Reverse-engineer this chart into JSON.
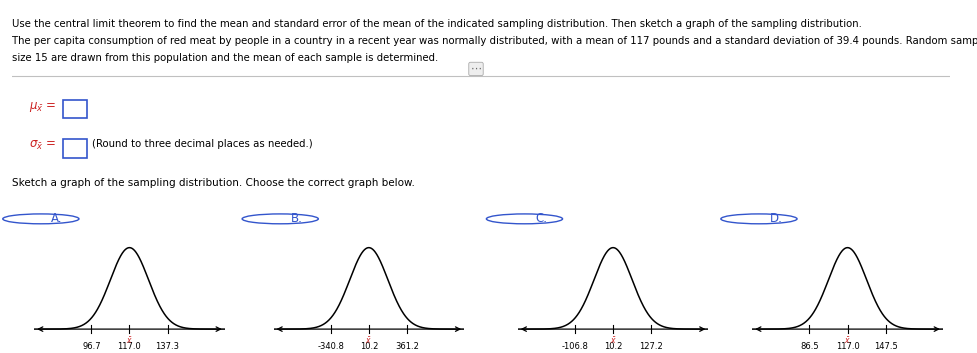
{
  "title_line1": "Use the central limit theorem to find the mean and standard error of the mean of the indicated sampling distribution. Then sketch a graph of the sampling distribution.",
  "title_line2": "The per capita consumption of red meat by people in a country in a recent year was normally distributed, with a mean of 117 pounds and a standard deviation of 39.4 pounds. Random samples of",
  "title_line3": "size 15 are drawn from this population and the mean of each sample is determined.",
  "round_note": "(Round to three decimal places as needed.)",
  "sketch_label": "Sketch a graph of the sampling distribution. Choose the correct graph below.",
  "options": [
    "A.",
    "B.",
    "C.",
    "D."
  ],
  "graphs": [
    {
      "ticks": [
        96.7,
        117.0,
        137.3
      ],
      "mean": 117.0,
      "std": 10.15
    },
    {
      "ticks": [
        -340.8,
        10.2,
        361.2
      ],
      "mean": 10.2,
      "std": 175.5
    },
    {
      "ticks": [
        -106.8,
        10.2,
        127.2
      ],
      "mean": 10.2,
      "std": 58.5
    },
    {
      "ticks": [
        86.5,
        117.0,
        147.5
      ],
      "mean": 117.0,
      "std": 15.25
    }
  ],
  "background_color": "#ffffff",
  "text_color": "#000000",
  "option_color": "#3355cc",
  "curve_color": "#000000",
  "teal_top_border": "#29b8bd",
  "divider_color": "#c0c0c0",
  "red_text_color": "#cc2222",
  "box_color": "#3355cc"
}
